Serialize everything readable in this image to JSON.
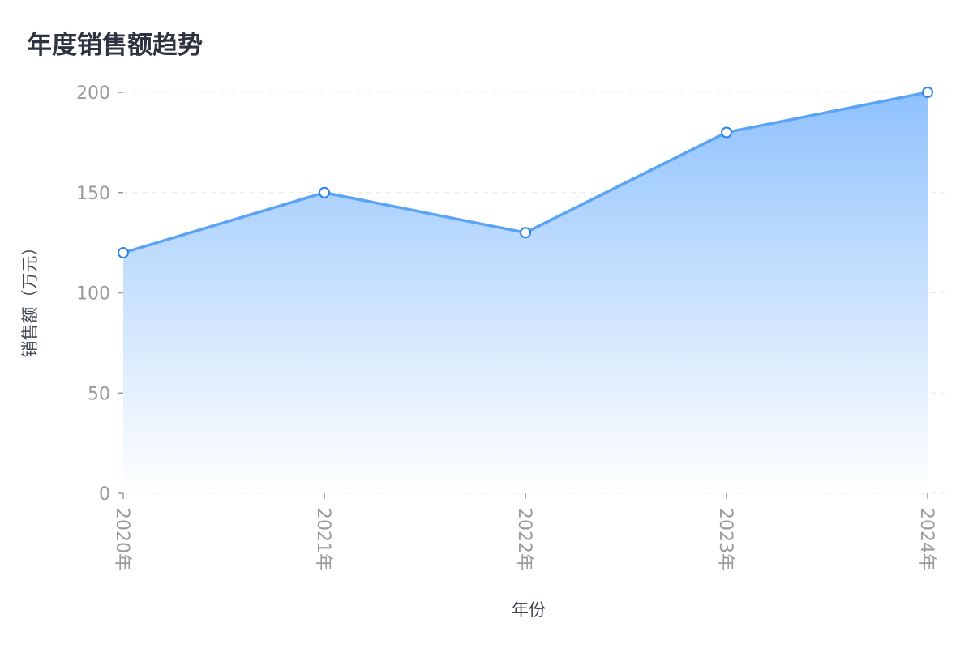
{
  "chart_data": {
    "type": "area",
    "title": "年度销售额趋势",
    "xlabel": "年份",
    "ylabel": "销售额（万元）",
    "categories": [
      "2020年",
      "2021年",
      "2022年",
      "2023年",
      "2024年"
    ],
    "values": [
      120,
      150,
      130,
      180,
      200
    ],
    "ylim": [
      0,
      200
    ],
    "yticks": [
      0,
      50,
      100,
      150,
      200
    ],
    "grid": true,
    "legend": "none",
    "colors": {
      "line": "#5ba3f5",
      "fill_top": "#8ec1fd",
      "fill_bottom": "#ffffff",
      "point_stroke": "#2d84ec"
    }
  }
}
